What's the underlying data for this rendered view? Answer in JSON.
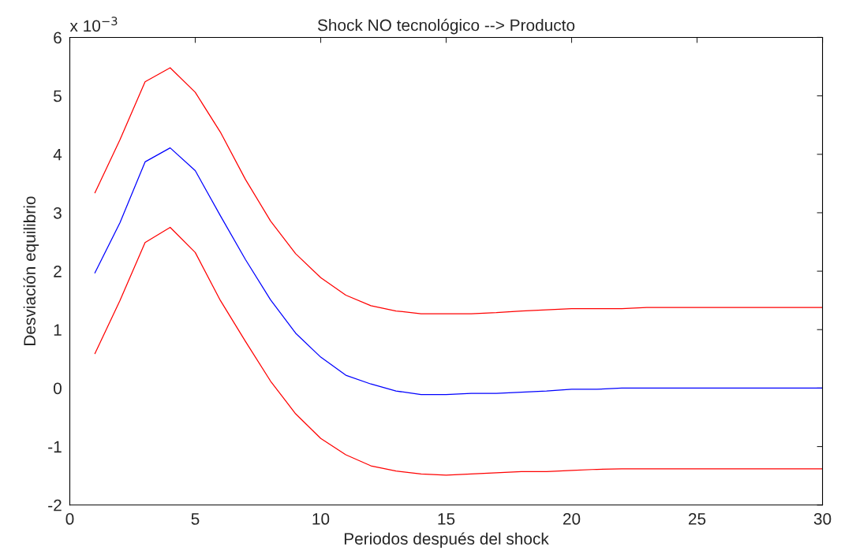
{
  "chart_data": {
    "type": "line",
    "title": "Shock NO tecnológico --> Producto",
    "xlabel": "Periodos después del shock",
    "ylabel": "Desviación equilibrio",
    "annotations": [
      "x 10$^{−3}$"
    ],
    "x": [
      1,
      2,
      3,
      4,
      5,
      6,
      7,
      8,
      9,
      10,
      11,
      12,
      13,
      14,
      15,
      16,
      17,
      18,
      19,
      20,
      21,
      22,
      23,
      24,
      25,
      26,
      27,
      28,
      29,
      30
    ],
    "series": [
      {
        "color": "#ff0000",
        "values": [
          3.34,
          4.25,
          5.24,
          5.48,
          5.06,
          4.38,
          3.57,
          2.86,
          2.3,
          1.89,
          1.59,
          1.41,
          1.32,
          1.27,
          1.27,
          1.27,
          1.29,
          1.32,
          1.34,
          1.36,
          1.36,
          1.36,
          1.38,
          1.38,
          1.38,
          1.38,
          1.38,
          1.38,
          1.38,
          1.38
        ]
      },
      {
        "color": "#0000ff",
        "values": [
          1.97,
          2.83,
          3.87,
          4.11,
          3.72,
          2.95,
          2.2,
          1.51,
          0.94,
          0.53,
          0.22,
          0.07,
          -0.05,
          -0.11,
          -0.11,
          -0.09,
          -0.09,
          -0.07,
          -0.05,
          -0.02,
          -0.02,
          0,
          0,
          0,
          0,
          0,
          0,
          0,
          0,
          0
        ]
      },
      {
        "color": "#ff0000",
        "values": [
          0.59,
          1.5,
          2.49,
          2.75,
          2.32,
          1.5,
          0.8,
          0.12,
          -0.44,
          -0.86,
          -1.14,
          -1.33,
          -1.42,
          -1.47,
          -1.49,
          -1.47,
          -1.45,
          -1.43,
          -1.43,
          -1.41,
          -1.39,
          -1.38,
          -1.38,
          -1.38,
          -1.38,
          -1.38,
          -1.38,
          -1.38,
          -1.38,
          -1.38
        ]
      }
    ],
    "xlim": [
      0,
      30
    ],
    "xticks": [
      0,
      5,
      10,
      15,
      20,
      25,
      30
    ],
    "ylim": [
      -2,
      6
    ],
    "yticks": [
      -2,
      -1,
      0,
      1,
      2,
      3,
      4,
      5,
      6
    ],
    "grid": false,
    "marker": "none",
    "line_style": "solid"
  }
}
